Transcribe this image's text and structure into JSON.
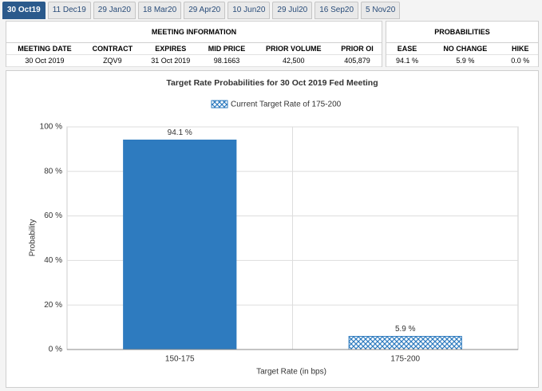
{
  "tabs": [
    "30 Oct19",
    "11 Dec19",
    "29 Jan20",
    "18 Mar20",
    "29 Apr20",
    "10 Jun20",
    "29 Jul20",
    "16 Sep20",
    "5 Nov20"
  ],
  "meeting_info": {
    "title": "MEETING INFORMATION",
    "headers": [
      "MEETING DATE",
      "CONTRACT",
      "EXPIRES",
      "MID PRICE",
      "PRIOR VOLUME",
      "PRIOR OI"
    ],
    "row": [
      "30 Oct 2019",
      "ZQV9",
      "31 Oct 2019",
      "98.1663",
      "42,500",
      "405,879"
    ]
  },
  "probabilities": {
    "title": "PROBABILITIES",
    "headers": [
      "EASE",
      "NO CHANGE",
      "HIKE"
    ],
    "row": [
      "94.1 %",
      "5.9 %",
      "0.0 %"
    ]
  },
  "chart_data": {
    "type": "bar",
    "title": "Target Rate Probabilities for 30 Oct 2019 Fed Meeting",
    "legend": "Current Target Rate of 175-200",
    "x_label": "Target Rate (in bps)",
    "y_label": "Probability",
    "categories": [
      "150-175",
      "175-200"
    ],
    "values": [
      94.1,
      5.9
    ],
    "value_labels": [
      "94.1 %",
      "5.9 %"
    ],
    "hatched": [
      false,
      true
    ],
    "color": "#2e7bbf",
    "ylim": [
      0,
      100
    ],
    "yticks": [
      {
        "value": 0,
        "label": "0 %"
      },
      {
        "value": 20,
        "label": "20 %"
      },
      {
        "value": 40,
        "label": "40 %"
      },
      {
        "value": 60,
        "label": "60 %"
      },
      {
        "value": 80,
        "label": "80 %"
      },
      {
        "value": 100,
        "label": "100 %"
      }
    ],
    "grid": true
  }
}
